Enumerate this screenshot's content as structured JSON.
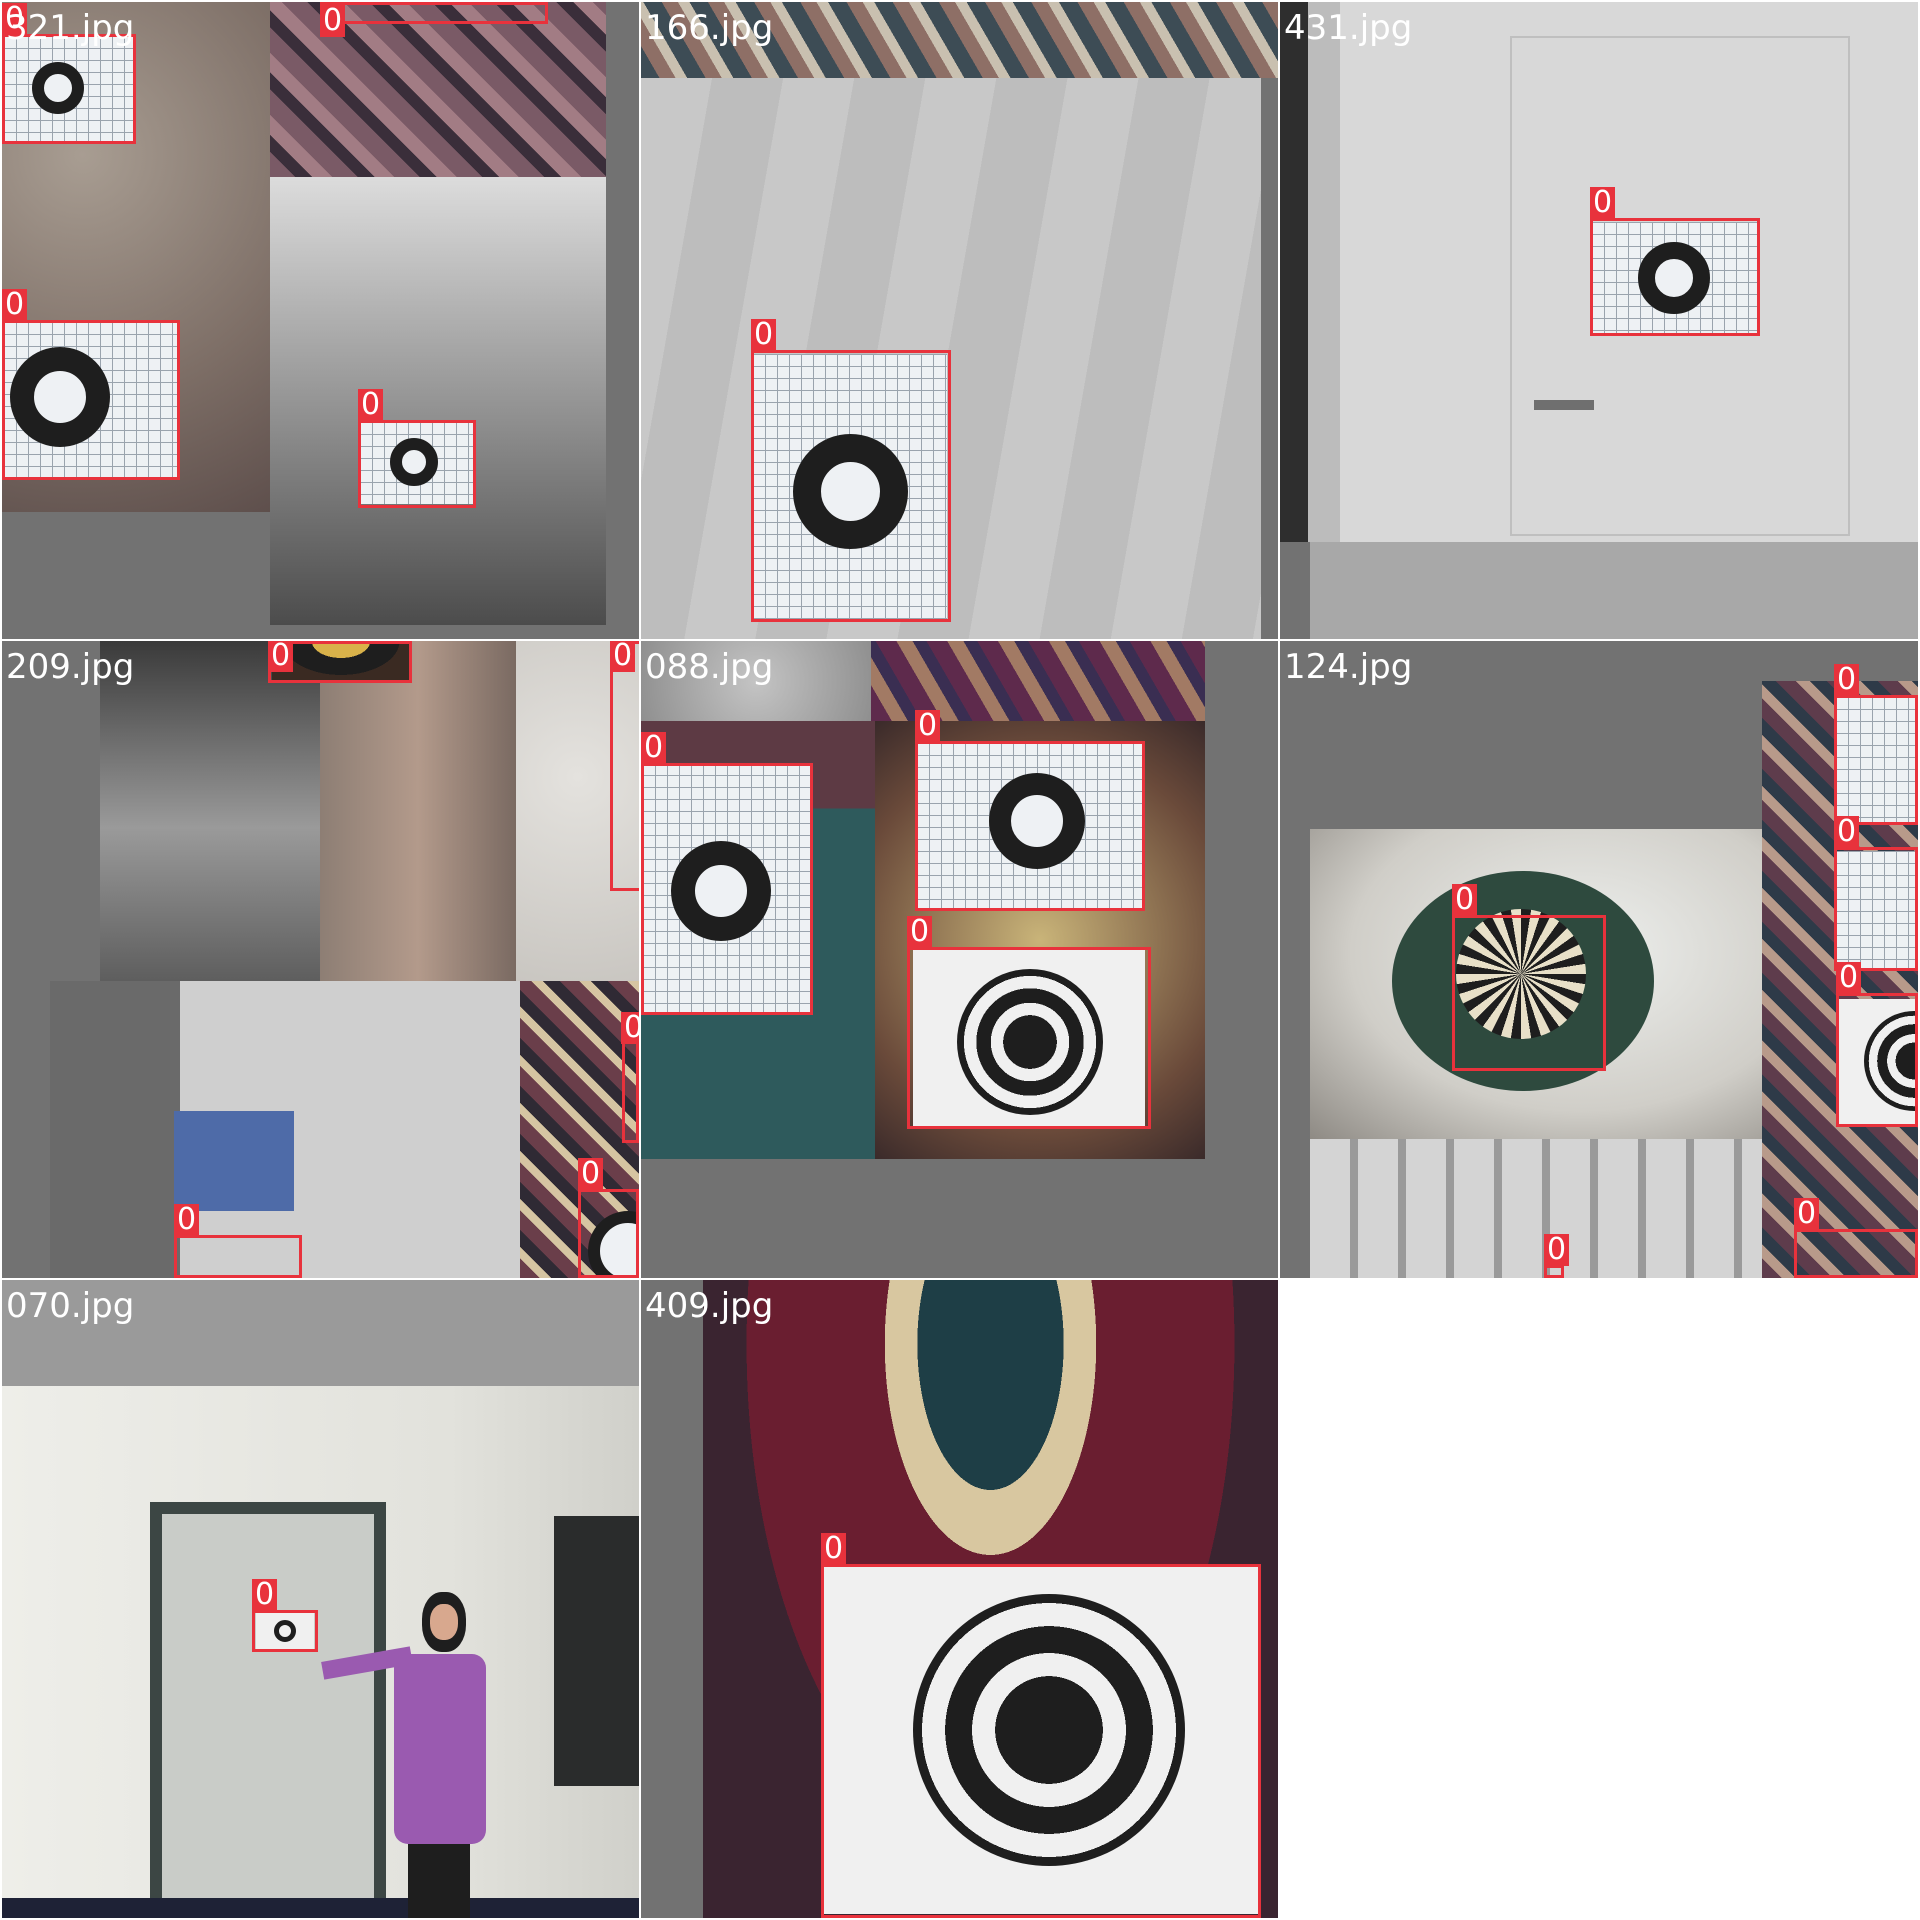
{
  "mosaic": {
    "accent_color": "#e8323c",
    "tiles": [
      {
        "filename": "321.jpg",
        "boxes": [
          {
            "label": "0"
          },
          {
            "label": "0"
          },
          {
            "label": "0"
          },
          {
            "label": "0"
          }
        ]
      },
      {
        "filename": "166.jpg",
        "boxes": [
          {
            "label": "0"
          }
        ]
      },
      {
        "filename": "431.jpg",
        "boxes": [
          {
            "label": "0"
          }
        ]
      },
      {
        "filename": "209.jpg",
        "boxes": [
          {
            "label": "0"
          },
          {
            "label": "0"
          },
          {
            "label": "0"
          },
          {
            "label": "0"
          },
          {
            "label": "0"
          }
        ]
      },
      {
        "filename": "088.jpg",
        "boxes": [
          {
            "label": "0"
          },
          {
            "label": "0"
          },
          {
            "label": "0"
          }
        ]
      },
      {
        "filename": "124.jpg",
        "boxes": [
          {
            "label": "0"
          },
          {
            "label": "0"
          },
          {
            "label": "0"
          },
          {
            "label": "0"
          },
          {
            "label": "0"
          },
          {
            "label": "0"
          }
        ]
      },
      {
        "filename": "070.jpg",
        "boxes": [
          {
            "label": "0"
          }
        ]
      },
      {
        "filename": "409.jpg",
        "boxes": [
          {
            "label": "0"
          }
        ]
      }
    ]
  }
}
